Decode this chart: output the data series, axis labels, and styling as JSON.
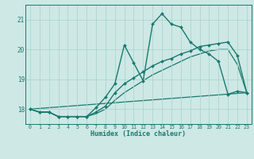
{
  "xlabel": "Humidex (Indice chaleur)",
  "xlim": [
    -0.5,
    23.5
  ],
  "ylim": [
    17.5,
    21.5
  ],
  "yticks": [
    18,
    19,
    20,
    21
  ],
  "xticks": [
    0,
    1,
    2,
    3,
    4,
    5,
    6,
    7,
    8,
    9,
    10,
    11,
    12,
    13,
    14,
    15,
    16,
    17,
    18,
    19,
    20,
    21,
    22,
    23
  ],
  "bg_color": "#cde8e5",
  "line_color": "#1a7a6e",
  "grid_color": "#b0d4d0",
  "series": [
    {
      "x": [
        0,
        1,
        2,
        3,
        4,
        5,
        6,
        7,
        8,
        9,
        10,
        11,
        12,
        13,
        14,
        15,
        16,
        17,
        18,
        19,
        20,
        21,
        22,
        23
      ],
      "y": [
        18.0,
        17.9,
        17.9,
        17.75,
        17.75,
        17.75,
        17.75,
        18.05,
        18.4,
        18.85,
        20.15,
        19.55,
        18.95,
        20.85,
        21.2,
        20.85,
        20.75,
        20.25,
        20.0,
        19.85,
        19.6,
        18.5,
        18.6,
        18.55
      ],
      "marker": true,
      "markersize": 2.0,
      "linewidth": 1.0
    },
    {
      "x": [
        0,
        1,
        2,
        3,
        4,
        5,
        6,
        7,
        8,
        9,
        10,
        11,
        12,
        13,
        14,
        15,
        16,
        17,
        18,
        19,
        20,
        21,
        22,
        23
      ],
      "y": [
        18.0,
        17.9,
        17.9,
        17.75,
        17.75,
        17.75,
        17.75,
        17.9,
        18.1,
        18.55,
        18.85,
        19.05,
        19.25,
        19.45,
        19.6,
        19.7,
        19.85,
        19.95,
        20.1,
        20.15,
        20.2,
        20.25,
        19.8,
        18.55
      ],
      "marker": true,
      "markersize": 2.0,
      "linewidth": 1.0
    },
    {
      "x": [
        0,
        1,
        2,
        3,
        4,
        5,
        6,
        7,
        8,
        9,
        10,
        11,
        12,
        13,
        14,
        15,
        16,
        17,
        18,
        19,
        20,
        21,
        22,
        23
      ],
      "y": [
        18.0,
        17.9,
        17.9,
        17.75,
        17.75,
        17.75,
        17.75,
        17.85,
        18.0,
        18.3,
        18.55,
        18.75,
        18.95,
        19.15,
        19.3,
        19.45,
        19.6,
        19.75,
        19.85,
        19.95,
        20.0,
        20.0,
        19.5,
        18.55
      ],
      "marker": false,
      "markersize": 0,
      "linewidth": 0.9
    },
    {
      "x": [
        0,
        23
      ],
      "y": [
        18.0,
        18.55
      ],
      "marker": false,
      "markersize": 0,
      "linewidth": 0.9
    }
  ]
}
